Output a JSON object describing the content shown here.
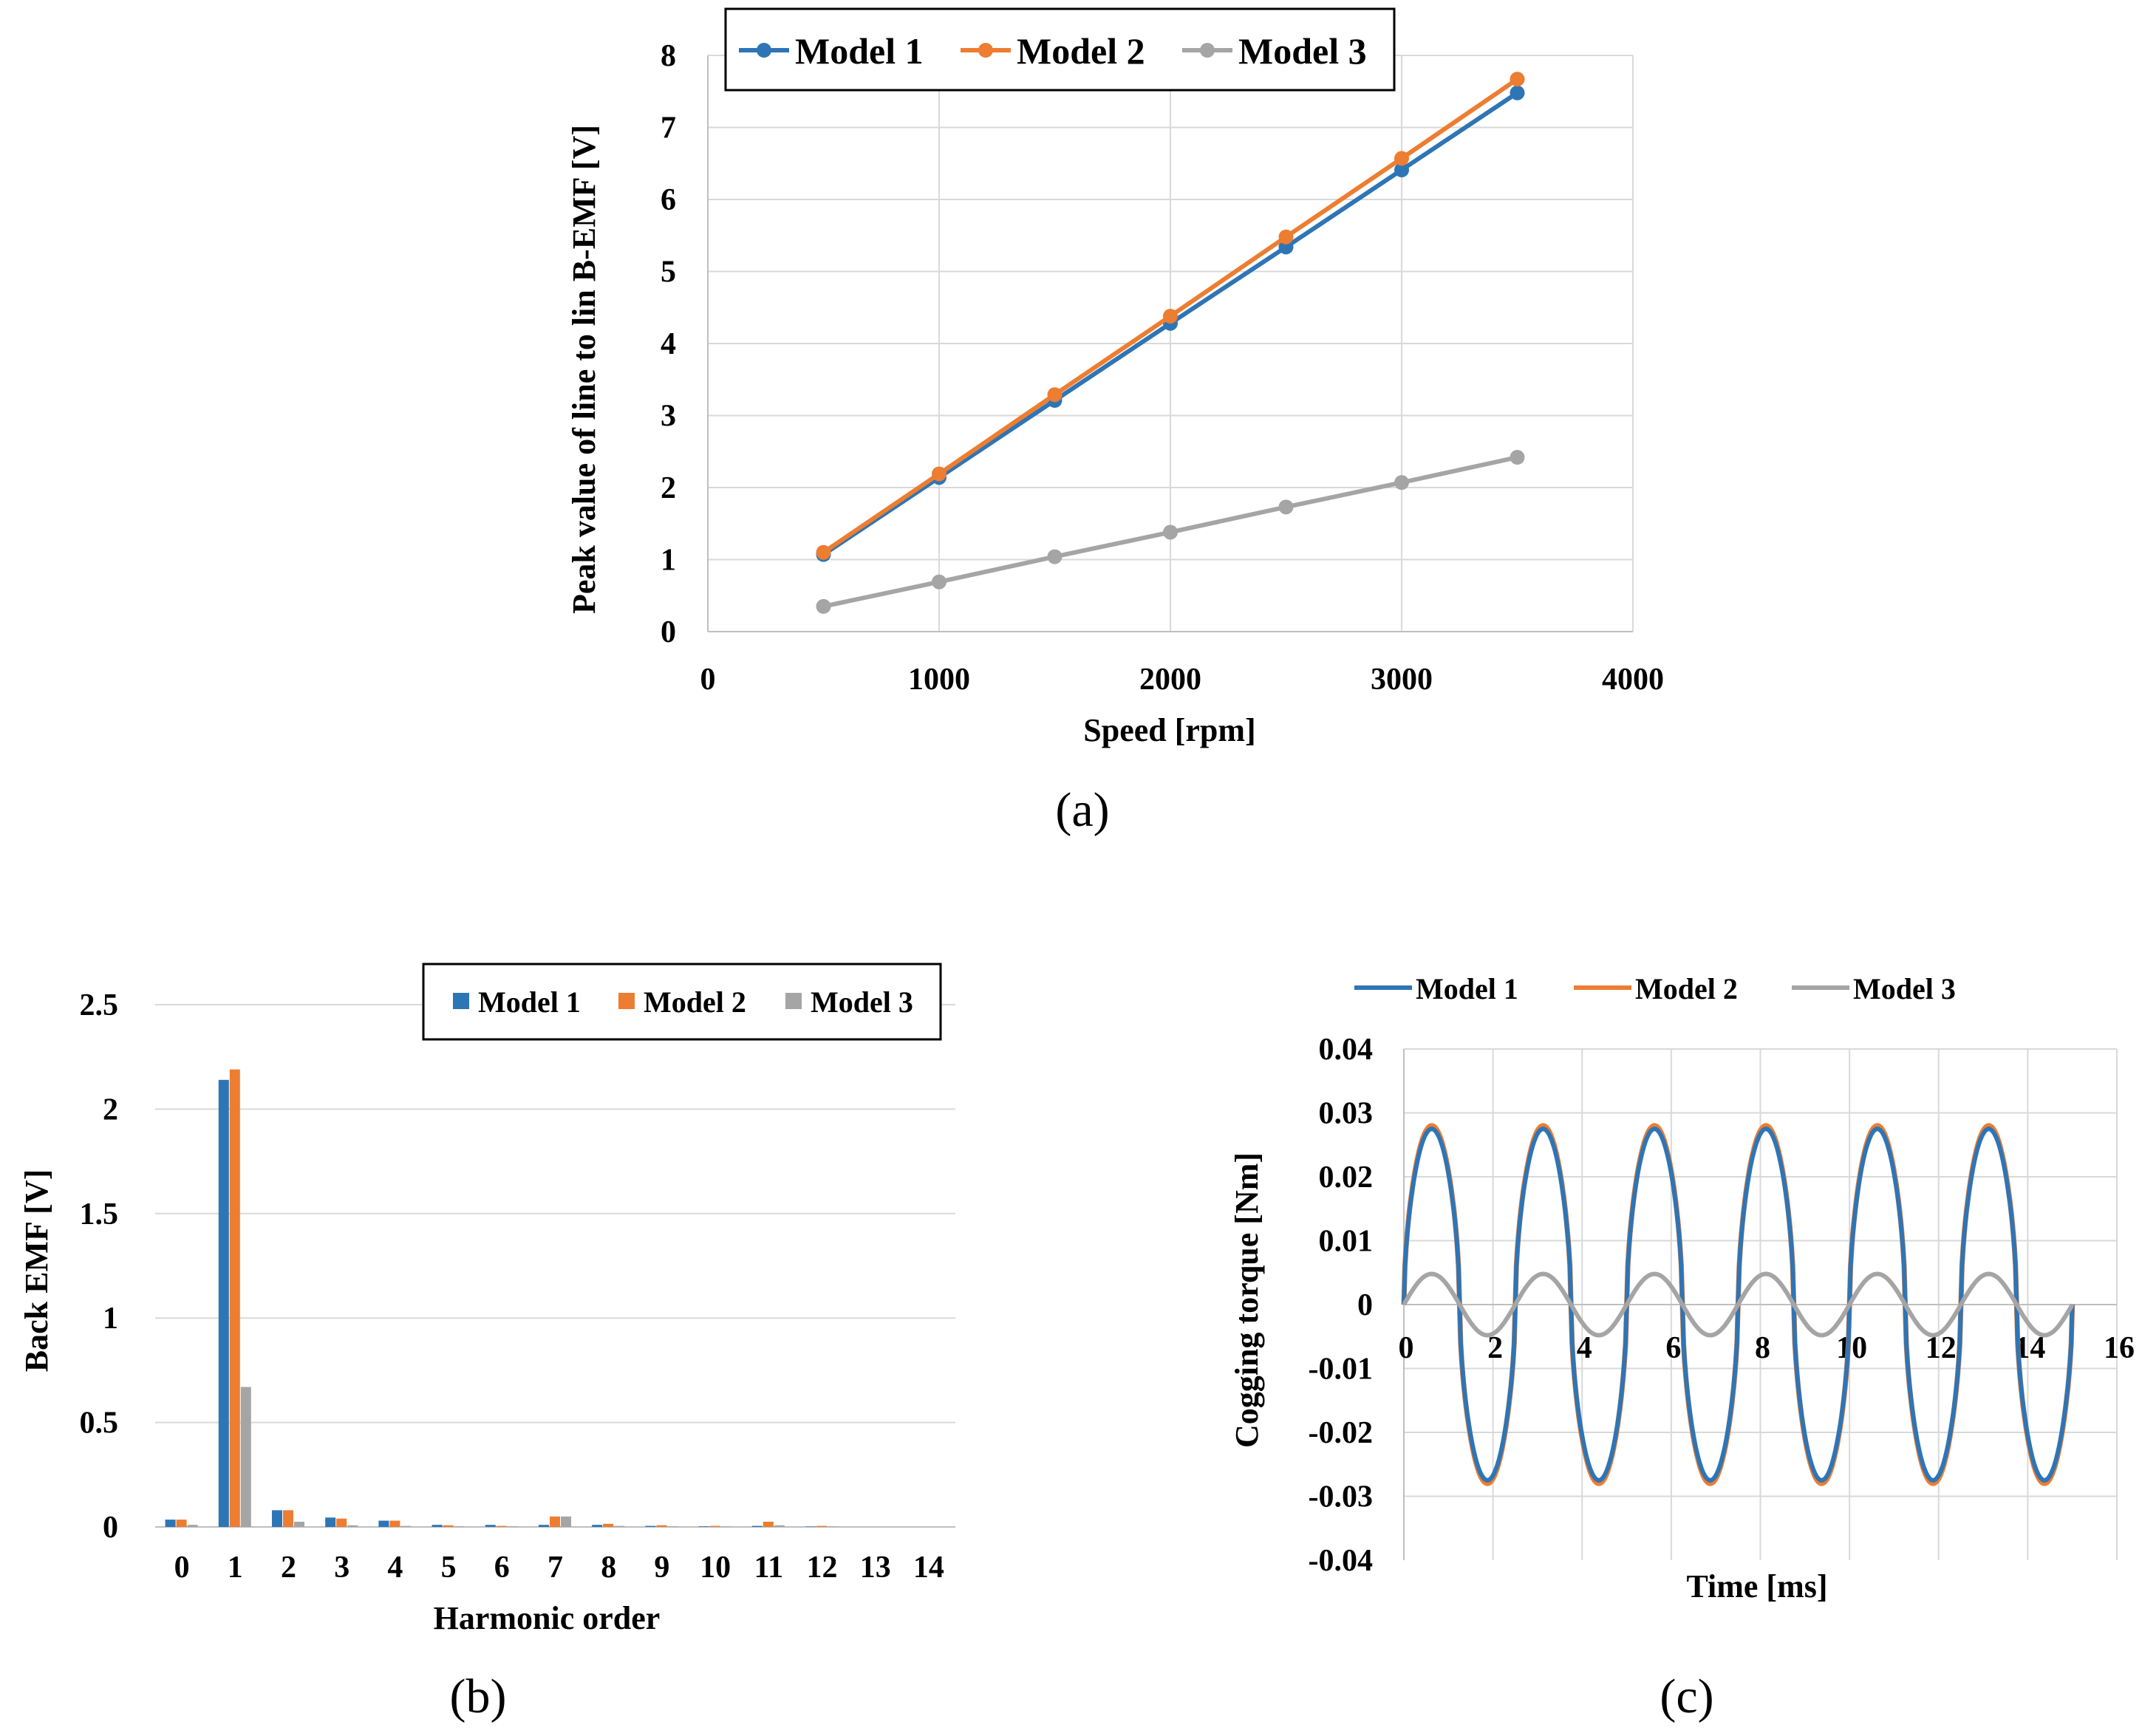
{
  "chart_data": [
    {
      "id": "a",
      "panel_label": "(a)",
      "type": "line",
      "xlabel": "Speed [rpm]",
      "ylabel": "Peak value of line to lin B-EMF [V]",
      "xlim": [
        0,
        4000
      ],
      "ylim": [
        0,
        8
      ],
      "xticks": [
        0,
        1000,
        2000,
        3000,
        4000
      ],
      "yticks": [
        0,
        1,
        2,
        3,
        4,
        5,
        6,
        7,
        8
      ],
      "grid": true,
      "legend_position": "top",
      "x": [
        500,
        1000,
        1500,
        2000,
        2500,
        3000,
        3500
      ],
      "series": [
        {
          "name": "Model 1",
          "color": "#2E75B6",
          "values": [
            1.07,
            2.14,
            3.21,
            4.28,
            5.34,
            6.41,
            7.48
          ]
        },
        {
          "name": "Model 2",
          "color": "#ED7D31",
          "values": [
            1.1,
            2.19,
            3.29,
            4.38,
            5.48,
            6.57,
            7.67
          ]
        },
        {
          "name": "Model 3",
          "color": "#A5A5A5",
          "values": [
            0.35,
            0.69,
            1.04,
            1.38,
            1.73,
            2.07,
            2.42
          ]
        }
      ]
    },
    {
      "id": "b",
      "panel_label": "(b)",
      "type": "bar",
      "xlabel": "Harmonic order",
      "ylabel": "Back EMF [V]",
      "ylim": [
        0,
        2.5
      ],
      "yticks": [
        "0",
        "0.5",
        "1",
        "1.5",
        "2",
        "2.5"
      ],
      "grid": true,
      "legend_position": "top-right",
      "categories": [
        "0",
        "1",
        "2",
        "3",
        "4",
        "5",
        "6",
        "7",
        "8",
        "9",
        "10",
        "11",
        "12",
        "13",
        "14"
      ],
      "series": [
        {
          "name": "Model 1",
          "color": "#2E75B6",
          "values": [
            0.035,
            2.14,
            0.08,
            0.045,
            0.03,
            0.01,
            0.01,
            0.01,
            0.01,
            0.005,
            0.003,
            0.005,
            0.002,
            0,
            0
          ]
        },
        {
          "name": "Model 2",
          "color": "#ED7D31",
          "values": [
            0.035,
            2.19,
            0.08,
            0.04,
            0.03,
            0.008,
            0.005,
            0.05,
            0.015,
            0.008,
            0.005,
            0.025,
            0.005,
            0,
            0
          ]
        },
        {
          "name": "Model 3",
          "color": "#A5A5A5",
          "values": [
            0.01,
            0.67,
            0.025,
            0.008,
            0.005,
            0.003,
            0.003,
            0.05,
            0.005,
            0.003,
            0.002,
            0.008,
            0.002,
            0,
            0
          ]
        }
      ]
    },
    {
      "id": "c",
      "panel_label": "(c)",
      "type": "line",
      "xlabel": "Time [ms]",
      "ylabel": "Cogging torque [Nm]",
      "xlim": [
        0,
        16
      ],
      "ylim": [
        -0.04,
        0.04
      ],
      "xticks": [
        "0",
        "2",
        "4",
        "6",
        "8",
        "10",
        "12",
        "14",
        "16"
      ],
      "yticks": [
        "-0.04",
        "-0.03",
        "-0.02",
        "-0.01",
        "0",
        "0.01",
        "0.02",
        "0.03",
        "0.04"
      ],
      "grid": true,
      "legend_position": "top",
      "series": [
        {
          "name": "Model 1",
          "color": "#2E75B6",
          "amplitude": 0.0275,
          "period_ms": 2.5,
          "x_end_ms": 15
        },
        {
          "name": "Model 2",
          "color": "#ED7D31",
          "amplitude": 0.028,
          "period_ms": 2.5,
          "x_end_ms": 15
        },
        {
          "name": "Model 3",
          "color": "#A5A5A5",
          "amplitude": 0.0048,
          "period_ms": 2.5,
          "x_end_ms": 15
        }
      ]
    }
  ]
}
